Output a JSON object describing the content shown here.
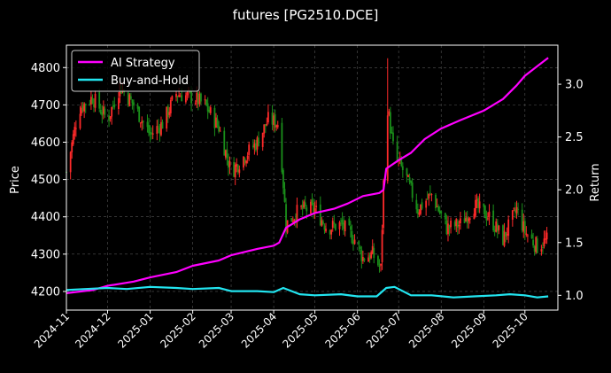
{
  "chart_data": {
    "type": "candlestick+line",
    "title": "futures [PG2510.DCE]",
    "xlabel": "",
    "ylabel_left": "Price",
    "ylabel_right": "Return",
    "ylim_left": [
      4150,
      4860
    ],
    "ylim_right": [
      0.86,
      3.37
    ],
    "xlim": [
      "2024-11-01",
      "2025-10-25"
    ],
    "x_ticks": [
      "2024-11",
      "2024-12",
      "2025-01",
      "2025-02",
      "2025-03",
      "2025-04",
      "2025-05",
      "2025-06",
      "2025-07",
      "2025-08",
      "2025-09",
      "2025-10"
    ],
    "y_ticks_left": [
      4200,
      4300,
      4400,
      4500,
      4600,
      4700,
      4800
    ],
    "y_ticks_right": [
      1.0,
      1.5,
      2.0,
      2.5,
      3.0
    ],
    "grid": true,
    "legend_position": "top-left",
    "colors": {
      "up": "#ff2a2a",
      "down": "#1a8f1a",
      "strategy": "#ff00ff",
      "buyhold": "#22e5f0",
      "grid": "#555555"
    },
    "series": [
      {
        "name": "AI Strategy",
        "axis": "right",
        "x": [
          "2024-11-01",
          "2024-11-20",
          "2024-12-01",
          "2024-12-20",
          "2025-01-01",
          "2025-01-20",
          "2025-02-01",
          "2025-02-20",
          "2025-03-01",
          "2025-03-20",
          "2025-04-01",
          "2025-04-05",
          "2025-04-10",
          "2025-04-20",
          "2025-05-01",
          "2025-05-15",
          "2025-05-25",
          "2025-06-05",
          "2025-06-17",
          "2025-06-20",
          "2025-06-22",
          "2025-07-01",
          "2025-07-10",
          "2025-07-20",
          "2025-08-01",
          "2025-08-15",
          "2025-09-01",
          "2025-09-15",
          "2025-09-25",
          "2025-10-01",
          "2025-10-10",
          "2025-10-18"
        ],
        "values": [
          1.02,
          1.05,
          1.09,
          1.13,
          1.17,
          1.22,
          1.28,
          1.33,
          1.38,
          1.44,
          1.47,
          1.5,
          1.64,
          1.72,
          1.78,
          1.82,
          1.87,
          1.94,
          1.97,
          2.0,
          2.2,
          2.28,
          2.35,
          2.48,
          2.58,
          2.66,
          2.75,
          2.86,
          2.99,
          3.08,
          3.17,
          3.25
        ]
      },
      {
        "name": "Buy-and-Hold",
        "axis": "right",
        "x": [
          "2024-11-01",
          "2024-11-15",
          "2024-12-01",
          "2024-12-15",
          "2025-01-01",
          "2025-01-20",
          "2025-02-01",
          "2025-02-20",
          "2025-03-01",
          "2025-03-20",
          "2025-04-01",
          "2025-04-08",
          "2025-04-20",
          "2025-05-01",
          "2025-05-20",
          "2025-06-01",
          "2025-06-15",
          "2025-06-22",
          "2025-06-28",
          "2025-07-10",
          "2025-07-25",
          "2025-08-10",
          "2025-08-25",
          "2025-09-10",
          "2025-09-20",
          "2025-10-01",
          "2025-10-10",
          "2025-10-18"
        ],
        "values": [
          1.05,
          1.06,
          1.07,
          1.06,
          1.08,
          1.07,
          1.06,
          1.07,
          1.04,
          1.04,
          1.03,
          1.07,
          1.01,
          1.0,
          1.01,
          0.99,
          0.99,
          1.07,
          1.08,
          1.0,
          1.0,
          0.98,
          0.99,
          1.0,
          1.01,
          1.0,
          0.98,
          0.99
        ]
      }
    ],
    "candlesticks": {
      "axis": "left",
      "anchors_x": [
        "2024-11-01",
        "2024-11-10",
        "2024-11-20",
        "2024-12-01",
        "2024-12-10",
        "2024-12-20",
        "2025-01-01",
        "2025-01-10",
        "2025-01-20",
        "2025-02-01",
        "2025-02-10",
        "2025-02-20",
        "2025-03-01",
        "2025-03-10",
        "2025-03-20",
        "2025-03-28",
        "2025-04-05",
        "2025-04-10",
        "2025-04-20",
        "2025-05-01",
        "2025-05-10",
        "2025-05-20",
        "2025-05-30",
        "2025-06-05",
        "2025-06-12",
        "2025-06-18",
        "2025-06-22",
        "2025-06-28",
        "2025-07-05",
        "2025-07-15",
        "2025-07-25",
        "2025-08-05",
        "2025-08-15",
        "2025-08-25",
        "2025-09-05",
        "2025-09-15",
        "2025-09-25",
        "2025-10-01",
        "2025-10-10",
        "2025-10-18"
      ],
      "anchors_close": [
        4520,
        4690,
        4720,
        4660,
        4750,
        4700,
        4620,
        4650,
        4730,
        4720,
        4700,
        4640,
        4520,
        4560,
        4600,
        4660,
        4650,
        4380,
        4420,
        4420,
        4370,
        4380,
        4340,
        4290,
        4300,
        4260,
        4720,
        4560,
        4520,
        4420,
        4460,
        4370,
        4380,
        4430,
        4400,
        4340,
        4420,
        4360,
        4320,
        4340
      ],
      "peak": {
        "x": "2025-06-23",
        "high": 4825
      }
    }
  }
}
